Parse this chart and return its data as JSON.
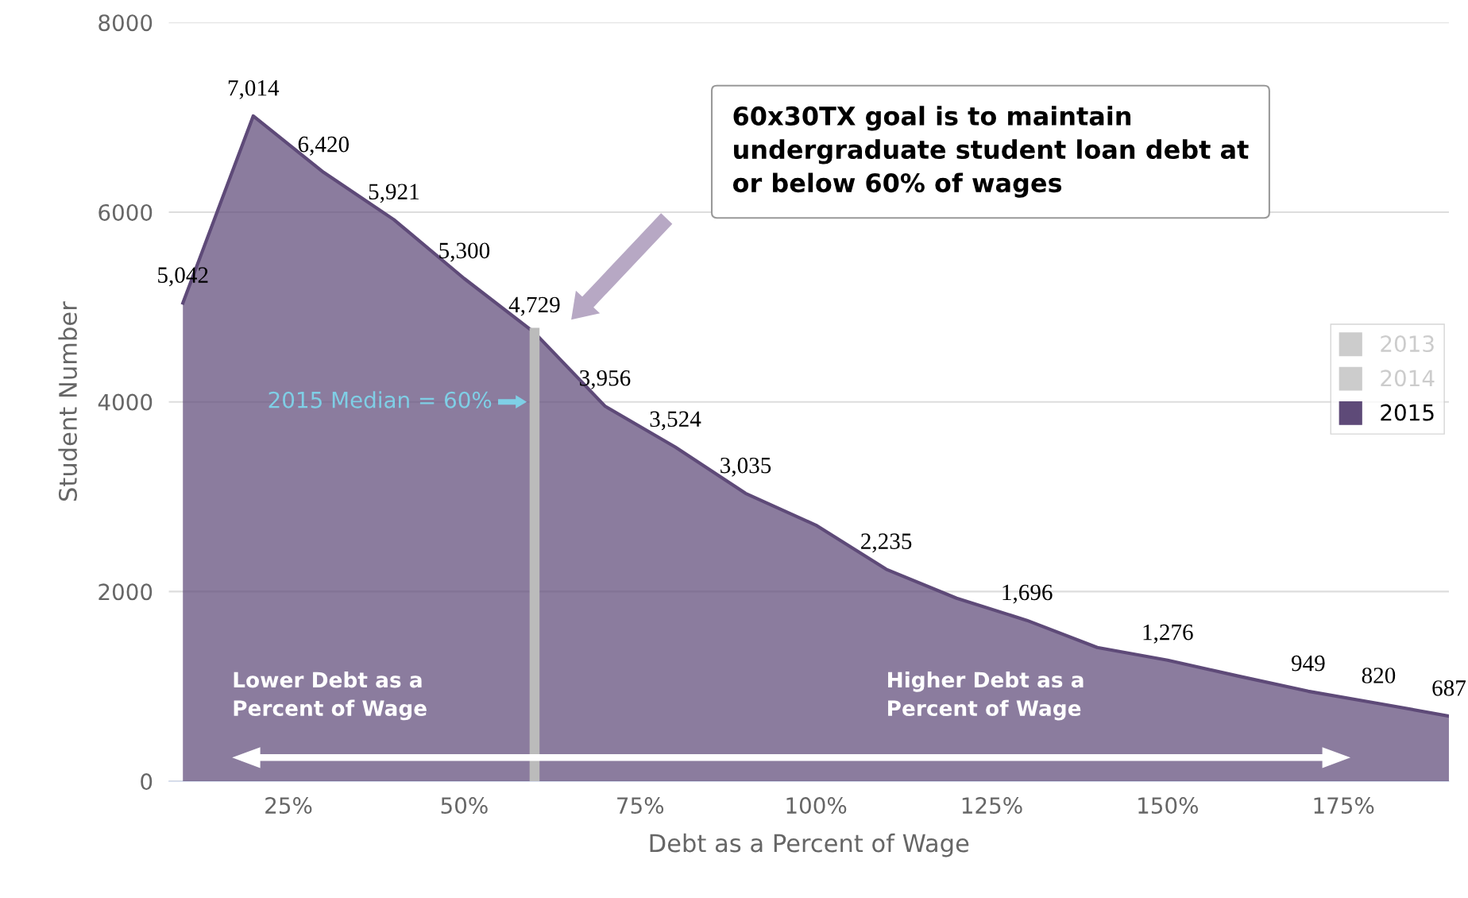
{
  "chart_data": {
    "type": "area",
    "xlabel": "Debt as a Percent of Wage",
    "ylabel": "Student Number",
    "x": [
      10,
      20,
      30,
      40,
      50,
      60,
      70,
      80,
      90,
      100,
      110,
      120,
      130,
      140,
      150,
      160,
      170,
      180,
      190
    ],
    "series": [
      {
        "name": "2013",
        "color": "#cccccc",
        "values": [
          null,
          null,
          null,
          null,
          null,
          null,
          null,
          null,
          null,
          null,
          null,
          null,
          null,
          null,
          null,
          null,
          null,
          null,
          null
        ]
      },
      {
        "name": "2014",
        "color": "#cccccc",
        "values": [
          null,
          null,
          null,
          null,
          null,
          null,
          null,
          null,
          null,
          null,
          null,
          null,
          null,
          null,
          null,
          null,
          null,
          null,
          null
        ]
      },
      {
        "name": "2015",
        "color": "#5e4a78",
        "values": [
          5042,
          7014,
          6420,
          5921,
          5300,
          4729,
          3956,
          3524,
          3035,
          2700,
          2235,
          1930,
          1696,
          1410,
          1276,
          1110,
          949,
          820,
          687
        ],
        "value_labels": [
          "5,042",
          "7,014",
          "6,420",
          "5,921",
          "5,300",
          "4,729",
          "3,956",
          "3,524",
          "3,035",
          null,
          "2,235",
          null,
          "1,696",
          null,
          "1,276",
          null,
          "949",
          "820",
          "687"
        ]
      }
    ],
    "xlim": [
      8,
      190
    ],
    "xticks": [
      {
        "value": 25,
        "label": "25%"
      },
      {
        "value": 50,
        "label": "50%"
      },
      {
        "value": 75,
        "label": "75%"
      },
      {
        "value": 100,
        "label": "100%"
      },
      {
        "value": 125,
        "label": "125%"
      },
      {
        "value": 150,
        "label": "150%"
      },
      {
        "value": 175,
        "label": "175%"
      }
    ],
    "ylim": [
      0,
      8000
    ],
    "yticks": [
      0,
      2000,
      4000,
      6000,
      8000
    ],
    "grid": "y",
    "legend": "right",
    "ref_lines": [
      {
        "axis": "x",
        "value": 60,
        "label": "2015 Median = 60%",
        "color": "#bbbbbb"
      }
    ],
    "annotations": [
      "60x30TX goal is to maintain\nundergraduate student loan debt at\nor below 60% of wages",
      "Lower Debt as a\nPercent of Wage",
      "Higher Debt as a\nPercent of Wage"
    ]
  }
}
